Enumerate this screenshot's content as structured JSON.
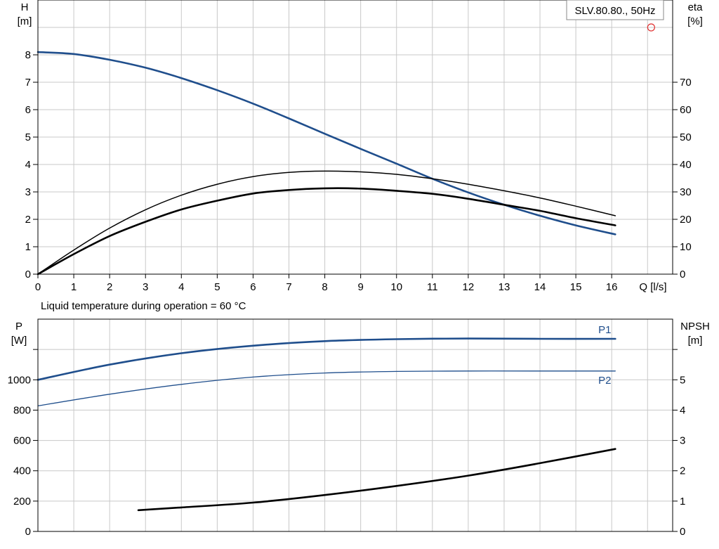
{
  "chart_data": [
    {
      "type": "line",
      "title": "SLV.80.80., 50Hz",
      "x_axis": {
        "label": "Q [l/s]",
        "min": 0,
        "max": 17.7,
        "ticks": [
          0,
          1,
          2,
          3,
          4,
          5,
          6,
          7,
          8,
          9,
          10,
          11,
          12,
          13,
          14,
          15,
          16
        ]
      },
      "y_left": {
        "label_top": "H",
        "label_unit": "[m]",
        "min": 0,
        "max": 10,
        "ticks": [
          0,
          1,
          2,
          3,
          4,
          5,
          6,
          7,
          8
        ]
      },
      "y_right": {
        "label_top": "eta",
        "label_unit": "[%]",
        "min": 0,
        "max": 100,
        "ticks": [
          0,
          10,
          20,
          30,
          40,
          50,
          60,
          70
        ]
      },
      "grid": true,
      "note": "Liquid temperature during operation = 60 °C",
      "series": [
        {
          "axis": "left",
          "color": "#1f4e8c",
          "width": 2.6,
          "x": [
            0,
            1,
            2,
            3,
            4,
            5,
            6,
            7,
            8,
            9,
            10,
            11,
            12,
            13,
            14,
            15,
            16.1
          ],
          "y": [
            8.1,
            8.03,
            7.82,
            7.53,
            7.15,
            6.71,
            6.22,
            5.68,
            5.12,
            4.57,
            4.03,
            3.48,
            2.98,
            2.53,
            2.13,
            1.78,
            1.45
          ]
        },
        {
          "axis": "right",
          "color": "#000000",
          "width": 1.5,
          "x": [
            0,
            1,
            2,
            3,
            4,
            5,
            6,
            7,
            8,
            9,
            10,
            11,
            12,
            13,
            14,
            15,
            16.1
          ],
          "y": [
            0,
            8.8,
            16.8,
            23.5,
            28.8,
            32.8,
            35.6,
            37.1,
            37.6,
            37.3,
            36.4,
            34.8,
            32.8,
            30.4,
            27.8,
            24.8,
            21.3
          ]
        },
        {
          "axis": "right",
          "color": "#000000",
          "width": 2.6,
          "x": [
            0,
            1,
            2,
            3,
            4,
            5,
            6,
            7,
            8,
            9,
            10,
            11,
            12,
            13,
            14,
            15,
            16.1
          ],
          "y": [
            0,
            7.3,
            13.9,
            19.1,
            23.6,
            26.8,
            29.4,
            30.7,
            31.3,
            31.2,
            30.4,
            29.3,
            27.5,
            25.3,
            23.1,
            20.4,
            17.8
          ]
        }
      ],
      "markers": [
        {
          "axis": "right",
          "x": 17.1,
          "y": 90,
          "shape": "circle-open",
          "color": "#e03030"
        }
      ]
    },
    {
      "type": "line",
      "x_axis": {
        "min": 0,
        "max": 17.7,
        "ticks": [
          0,
          1,
          2,
          3,
          4,
          5,
          6,
          7,
          8,
          9,
          10,
          11,
          12,
          13,
          14,
          15,
          16
        ]
      },
      "y_left": {
        "label_top": "P",
        "label_unit": "[W]",
        "min": 0,
        "max": 1400,
        "ticks": [
          0,
          200,
          400,
          600,
          800,
          1000
        ],
        "extra_ticks": [
          1200
        ]
      },
      "y_right": {
        "label_top": "NPSH",
        "label_unit": "[m]",
        "min": 0,
        "max": 7,
        "ticks": [
          0,
          1,
          2,
          3,
          4,
          5
        ],
        "extra_ticks": [
          6
        ]
      },
      "grid": true,
      "series": [
        {
          "name": "P1",
          "axis": "left",
          "color": "#1f4e8c",
          "width": 2.6,
          "x": [
            0,
            2,
            4,
            6,
            8,
            10,
            12,
            14,
            16.1
          ],
          "y": [
            1000,
            1100,
            1175,
            1225,
            1255,
            1268,
            1272,
            1270,
            1270
          ]
        },
        {
          "name": "P2",
          "axis": "left",
          "color": "#1f4e8c",
          "width": 1.3,
          "x": [
            0,
            2,
            4,
            6,
            8,
            10,
            12,
            14,
            16.1
          ],
          "y": [
            828,
            905,
            970,
            1018,
            1045,
            1055,
            1058,
            1058,
            1058
          ]
        },
        {
          "axis": "right",
          "color": "#000000",
          "width": 2.6,
          "x": [
            2.8,
            4,
            6,
            8,
            10,
            12,
            14,
            16.1
          ],
          "y": [
            0.7,
            0.79,
            0.95,
            1.2,
            1.5,
            1.84,
            2.25,
            2.72
          ]
        }
      ]
    }
  ]
}
